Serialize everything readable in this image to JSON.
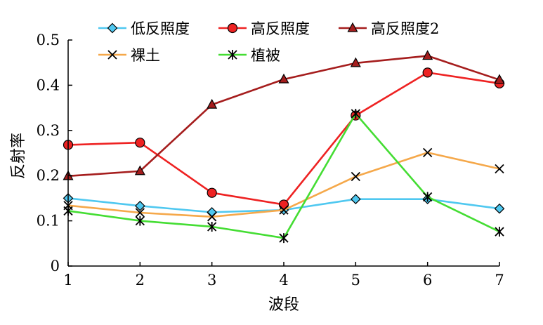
{
  "chart_data": {
    "type": "line",
    "title": "",
    "xlabel": "波段",
    "ylabel": "反射率",
    "x": [
      1,
      2,
      3,
      4,
      5,
      6,
      7
    ],
    "xticks": [
      "1",
      "2",
      "3",
      "4",
      "5",
      "6",
      "7"
    ],
    "ylim": [
      0,
      0.5
    ],
    "yticks": [
      "0",
      "0.1",
      "0.2",
      "0.3",
      "0.4",
      "0.5"
    ],
    "grid": false,
    "legend_position": "top",
    "series": [
      {
        "name": "低反照度",
        "color": "#4fc8f0",
        "marker": "diamond",
        "values": [
          0.15,
          0.133,
          0.119,
          0.124,
          0.148,
          0.148,
          0.127
        ]
      },
      {
        "name": "高反照度",
        "color": "#ee2222",
        "marker": "circle",
        "values": [
          0.268,
          0.273,
          0.162,
          0.136,
          0.333,
          0.428,
          0.404
        ]
      },
      {
        "name": "高反照度2",
        "color": "#a51d1d",
        "marker": "triangle",
        "values": [
          0.199,
          0.21,
          0.357,
          0.413,
          0.449,
          0.465,
          0.412
        ]
      },
      {
        "name": "裸土",
        "color": "#f5a84a",
        "marker": "x",
        "values": [
          0.134,
          0.118,
          0.109,
          0.124,
          0.198,
          0.251,
          0.215
        ]
      },
      {
        "name": "植被",
        "color": "#44dd33",
        "marker": "star",
        "values": [
          0.122,
          0.1,
          0.087,
          0.062,
          0.337,
          0.153,
          0.076
        ]
      }
    ]
  }
}
